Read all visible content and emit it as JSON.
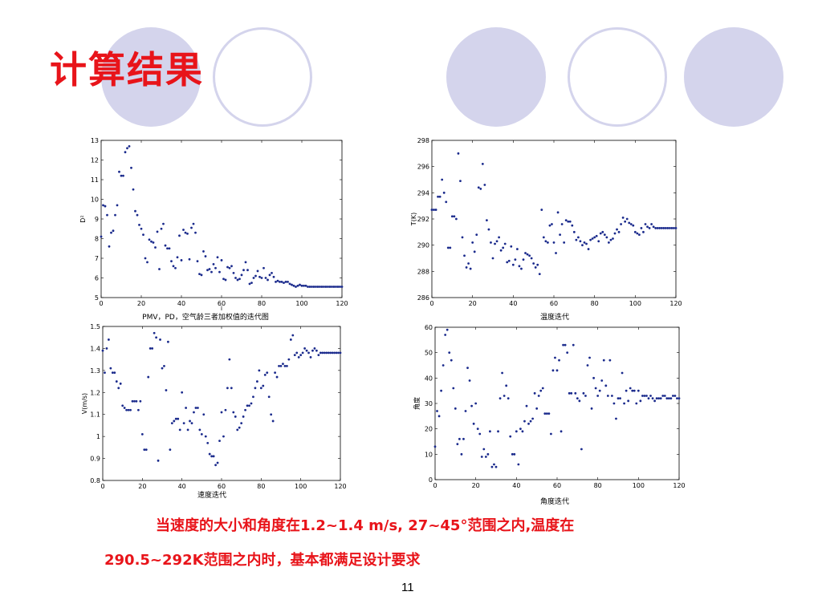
{
  "slide": {
    "title": "计算结果",
    "conclusion_line1": "当速度的大小和角度在1.2~1.4 m/s, 27~45°范围之内,温度在",
    "conclusion_line2": "290.5~292K范围之内时，基本都满足设计要求",
    "page_number": "11"
  },
  "theme": {
    "accent": "#e8141a",
    "decor": "#d4d4ec",
    "marker": "#1a2a8c"
  },
  "chart_data": [
    {
      "type": "scatter",
      "caption": "PMV，PD，空气龄三者加权值的迭代图",
      "ylabel": "D²",
      "xlabel": "i",
      "xlim": [
        0,
        120
      ],
      "ylim": [
        5,
        13
      ],
      "xticks": [
        0,
        20,
        40,
        60,
        80,
        100,
        120
      ],
      "yticks": [
        5,
        6,
        7,
        8,
        9,
        10,
        11,
        12,
        13
      ],
      "grid": false,
      "x": [
        0,
        1,
        2,
        3,
        4,
        5,
        6,
        7,
        8,
        9,
        10,
        11,
        12,
        13,
        14,
        15,
        16,
        17,
        18,
        19,
        20,
        21,
        22,
        23,
        24,
        25,
        26,
        27,
        28,
        29,
        30,
        31,
        32,
        33,
        34,
        35,
        36,
        37,
        38,
        39,
        40,
        41,
        42,
        43,
        44,
        45,
        46,
        47,
        48,
        49,
        50,
        51,
        52,
        53,
        54,
        55,
        56,
        57,
        58,
        59,
        60,
        61,
        62,
        63,
        64,
        65,
        66,
        67,
        68,
        69,
        70,
        71,
        72,
        73,
        74,
        75,
        76,
        77,
        78,
        79,
        80,
        81,
        82,
        83,
        84,
        85,
        86,
        87,
        88,
        89,
        90,
        91,
        92,
        93,
        94,
        95,
        96,
        97,
        98,
        99,
        100,
        101,
        102,
        103,
        104,
        105,
        106,
        107,
        108,
        109,
        110,
        111,
        112,
        113,
        114,
        115,
        116,
        117,
        118,
        119,
        120
      ],
      "y": [
        8.1,
        9.7,
        9.65,
        9.2,
        7.6,
        8.3,
        8.4,
        9.2,
        9.7,
        11.4,
        11.2,
        11.2,
        12.4,
        12.6,
        12.7,
        11.6,
        10.5,
        9.4,
        9.2,
        8.7,
        8.5,
        8.2,
        7.0,
        6.8,
        7.95,
        7.85,
        7.8,
        7.55,
        8.35,
        6.45,
        8.5,
        8.75,
        7.65,
        7.5,
        7.5,
        6.85,
        6.6,
        6.5,
        7.05,
        8.15,
        6.9,
        8.45,
        8.3,
        8.25,
        6.95,
        8.55,
        8.75,
        8.3,
        6.85,
        6.2,
        6.15,
        7.35,
        7.1,
        6.4,
        6.45,
        6.3,
        6.7,
        6.5,
        7.05,
        6.3,
        6.9,
        5.95,
        5.9,
        6.55,
        6.5,
        6.6,
        6.25,
        6.0,
        5.9,
        5.95,
        6.15,
        6.4,
        6.8,
        6.4,
        5.7,
        5.75,
        6.0,
        6.1,
        6.35,
        6.05,
        6.0,
        6.5,
        6.0,
        5.9,
        6.15,
        6.25,
        6.05,
        5.8,
        5.85,
        5.8,
        5.8,
        5.75,
        5.8,
        5.8,
        5.7,
        5.65,
        5.6,
        5.55,
        5.6,
        5.65,
        5.6,
        5.6,
        5.6,
        5.55,
        5.55,
        5.55,
        5.55,
        5.55,
        5.55,
        5.55,
        5.55,
        5.55,
        5.55,
        5.55,
        5.55,
        5.55,
        5.55,
        5.55,
        5.55,
        5.55,
        5.55
      ]
    },
    {
      "type": "scatter",
      "caption": "温度迭代",
      "ylabel": "T(K)",
      "xlabel": "",
      "xlim": [
        0,
        120
      ],
      "ylim": [
        286,
        298
      ],
      "xticks": [
        0,
        20,
        40,
        60,
        80,
        100,
        120
      ],
      "yticks": [
        286,
        288,
        290,
        292,
        294,
        296,
        298
      ],
      "grid": false,
      "x": [
        0,
        1,
        2,
        3,
        4,
        5,
        6,
        7,
        8,
        9,
        10,
        11,
        12,
        13,
        14,
        15,
        16,
        17,
        18,
        19,
        20,
        21,
        22,
        23,
        24,
        25,
        26,
        27,
        28,
        29,
        30,
        31,
        32,
        33,
        34,
        35,
        36,
        37,
        38,
        39,
        40,
        41,
        42,
        43,
        44,
        45,
        46,
        47,
        48,
        49,
        50,
        51,
        52,
        53,
        54,
        55,
        56,
        57,
        58,
        59,
        60,
        61,
        62,
        63,
        64,
        65,
        66,
        67,
        68,
        69,
        70,
        71,
        72,
        73,
        74,
        75,
        76,
        77,
        78,
        79,
        80,
        81,
        82,
        83,
        84,
        85,
        86,
        87,
        88,
        89,
        90,
        91,
        92,
        93,
        94,
        95,
        96,
        97,
        98,
        99,
        100,
        101,
        102,
        103,
        104,
        105,
        106,
        107,
        108,
        109,
        110,
        111,
        112,
        113,
        114,
        115,
        116,
        117,
        118,
        119,
        120
      ],
      "y": [
        292.7,
        292.7,
        292.7,
        293.7,
        293.7,
        295.0,
        294.0,
        293.3,
        289.8,
        289.8,
        292.2,
        292.2,
        292.0,
        297.0,
        294.9,
        290.6,
        289.2,
        288.3,
        288.6,
        288.2,
        290.2,
        289.5,
        290.8,
        294.4,
        294.3,
        296.2,
        294.6,
        291.9,
        291.2,
        290.2,
        289.0,
        290.1,
        290.3,
        290.6,
        289.6,
        289.8,
        290.1,
        288.7,
        288.8,
        289.9,
        288.5,
        288.9,
        289.7,
        288.4,
        288.2,
        288.9,
        289.4,
        289.3,
        289.2,
        289.0,
        288.6,
        288.3,
        288.5,
        287.8,
        292.7,
        290.6,
        290.3,
        290.2,
        291.5,
        291.6,
        290.2,
        289.4,
        292.5,
        290.8,
        291.6,
        290.2,
        291.9,
        291.8,
        291.8,
        291.5,
        291.0,
        290.4,
        290.6,
        290.3,
        290.0,
        290.2,
        290.1,
        289.7,
        290.4,
        290.5,
        290.6,
        290.7,
        290.3,
        290.9,
        291.0,
        290.8,
        290.6,
        290.2,
        290.4,
        290.5,
        290.9,
        291.2,
        291.0,
        291.6,
        292.1,
        291.8,
        292.0,
        291.7,
        291.6,
        291.5,
        291.0,
        290.9,
        290.8,
        291.3,
        291.0,
        291.6,
        291.4,
        291.3,
        291.6,
        291.4,
        291.3,
        291.3,
        291.3,
        291.3,
        291.3,
        291.3,
        291.3,
        291.3,
        291.3,
        291.3,
        291.3
      ]
    },
    {
      "type": "scatter",
      "caption": "速度迭代",
      "ylabel": "V(m/s)",
      "xlabel": "",
      "xlim": [
        0,
        120
      ],
      "ylim": [
        0.8,
        1.5
      ],
      "xticks": [
        0,
        20,
        40,
        60,
        80,
        100,
        120
      ],
      "yticks": [
        0.8,
        0.9,
        1.0,
        1.1,
        1.2,
        1.3,
        1.4,
        1.5
      ],
      "grid": false,
      "x": [
        0,
        1,
        2,
        3,
        4,
        5,
        6,
        7,
        8,
        9,
        10,
        11,
        12,
        13,
        14,
        15,
        16,
        17,
        18,
        19,
        20,
        21,
        22,
        23,
        24,
        25,
        26,
        27,
        28,
        29,
        30,
        31,
        32,
        33,
        34,
        35,
        36,
        37,
        38,
        39,
        40,
        41,
        42,
        43,
        44,
        45,
        46,
        47,
        48,
        49,
        50,
        51,
        52,
        53,
        54,
        55,
        56,
        57,
        58,
        59,
        60,
        61,
        62,
        63,
        64,
        65,
        66,
        67,
        68,
        69,
        70,
        71,
        72,
        73,
        74,
        75,
        76,
        77,
        78,
        79,
        80,
        81,
        82,
        83,
        84,
        85,
        86,
        87,
        88,
        89,
        90,
        91,
        92,
        93,
        94,
        95,
        96,
        97,
        98,
        99,
        100,
        101,
        102,
        103,
        104,
        105,
        106,
        107,
        108,
        109,
        110,
        111,
        112,
        113,
        114,
        115,
        116,
        117,
        118,
        119,
        120
      ],
      "y": [
        1.39,
        1.29,
        1.4,
        1.44,
        1.31,
        1.29,
        1.29,
        1.25,
        1.22,
        1.24,
        1.14,
        1.13,
        1.12,
        1.12,
        1.12,
        1.16,
        1.16,
        1.16,
        1.12,
        1.16,
        1.01,
        0.94,
        0.94,
        1.27,
        1.4,
        1.4,
        1.47,
        1.45,
        0.89,
        1.44,
        1.31,
        1.32,
        1.21,
        1.43,
        0.94,
        1.06,
        1.07,
        1.08,
        1.08,
        1.03,
        1.2,
        1.06,
        1.13,
        1.03,
        1.07,
        1.06,
        1.11,
        1.13,
        1.13,
        1.03,
        1.01,
        1.1,
        1.0,
        0.97,
        0.92,
        0.91,
        0.91,
        0.87,
        0.88,
        0.98,
        1.11,
        1.0,
        1.12,
        1.22,
        1.35,
        1.22,
        1.11,
        1.09,
        1.03,
        1.04,
        1.06,
        1.09,
        1.12,
        1.14,
        1.14,
        1.15,
        1.18,
        1.22,
        1.25,
        1.3,
        1.22,
        1.23,
        1.28,
        1.29,
        1.18,
        1.1,
        1.07,
        1.29,
        1.27,
        1.32,
        1.32,
        1.33,
        1.32,
        1.32,
        1.35,
        1.44,
        1.46,
        1.37,
        1.38,
        1.36,
        1.37,
        1.38,
        1.4,
        1.39,
        1.38,
        1.36,
        1.39,
        1.4,
        1.39,
        1.37,
        1.38,
        1.38,
        1.38,
        1.38,
        1.38,
        1.38,
        1.38,
        1.38,
        1.38,
        1.38,
        1.38
      ]
    },
    {
      "type": "scatter",
      "caption": "角度迭代",
      "ylabel": "角度",
      "xlabel": "",
      "xlim": [
        0,
        120
      ],
      "ylim": [
        0,
        60
      ],
      "xticks": [
        0,
        20,
        40,
        60,
        80,
        100,
        120
      ],
      "yticks": [
        0,
        10,
        20,
        30,
        40,
        50,
        60
      ],
      "grid": false,
      "x": [
        0,
        1,
        2,
        3,
        4,
        5,
        6,
        7,
        8,
        9,
        10,
        11,
        12,
        13,
        14,
        15,
        16,
        17,
        18,
        19,
        20,
        21,
        22,
        23,
        24,
        25,
        26,
        27,
        28,
        29,
        30,
        31,
        32,
        33,
        34,
        35,
        36,
        37,
        38,
        39,
        40,
        41,
        42,
        43,
        44,
        45,
        46,
        47,
        48,
        49,
        50,
        51,
        52,
        53,
        54,
        55,
        56,
        57,
        58,
        59,
        60,
        61,
        62,
        63,
        64,
        65,
        66,
        67,
        68,
        69,
        70,
        71,
        72,
        73,
        74,
        75,
        76,
        77,
        78,
        79,
        80,
        81,
        82,
        83,
        84,
        85,
        86,
        87,
        88,
        89,
        90,
        91,
        92,
        93,
        94,
        95,
        96,
        97,
        98,
        99,
        100,
        101,
        102,
        103,
        104,
        105,
        106,
        107,
        108,
        109,
        110,
        111,
        112,
        113,
        114,
        115,
        116,
        117,
        118,
        119,
        120
      ],
      "y": [
        13,
        27,
        25,
        35,
        45,
        57,
        59,
        50,
        47,
        36,
        28,
        14,
        16,
        10,
        16,
        27,
        44,
        39,
        29,
        22,
        30,
        20,
        18,
        9,
        12,
        9,
        10,
        19,
        5,
        6,
        5,
        19,
        32,
        42,
        33,
        37,
        32,
        17,
        10,
        10,
        19,
        6,
        20,
        19,
        23,
        29,
        22,
        23,
        24,
        34,
        28,
        33,
        35,
        36,
        26,
        26,
        26,
        18,
        43,
        48,
        43,
        47,
        19,
        53,
        53,
        50,
        34,
        34,
        53,
        34,
        32,
        31,
        12,
        34,
        33,
        45,
        48,
        28,
        40,
        36,
        33,
        35,
        39,
        47,
        37,
        33,
        47,
        33,
        30,
        24,
        32,
        32,
        42,
        30,
        35,
        31,
        36,
        35,
        35,
        30,
        35,
        31,
        33,
        33,
        33,
        32,
        33,
        32,
        31,
        32,
        32,
        32,
        33,
        33,
        32,
        32,
        32,
        33,
        33,
        32,
        32
      ]
    }
  ]
}
